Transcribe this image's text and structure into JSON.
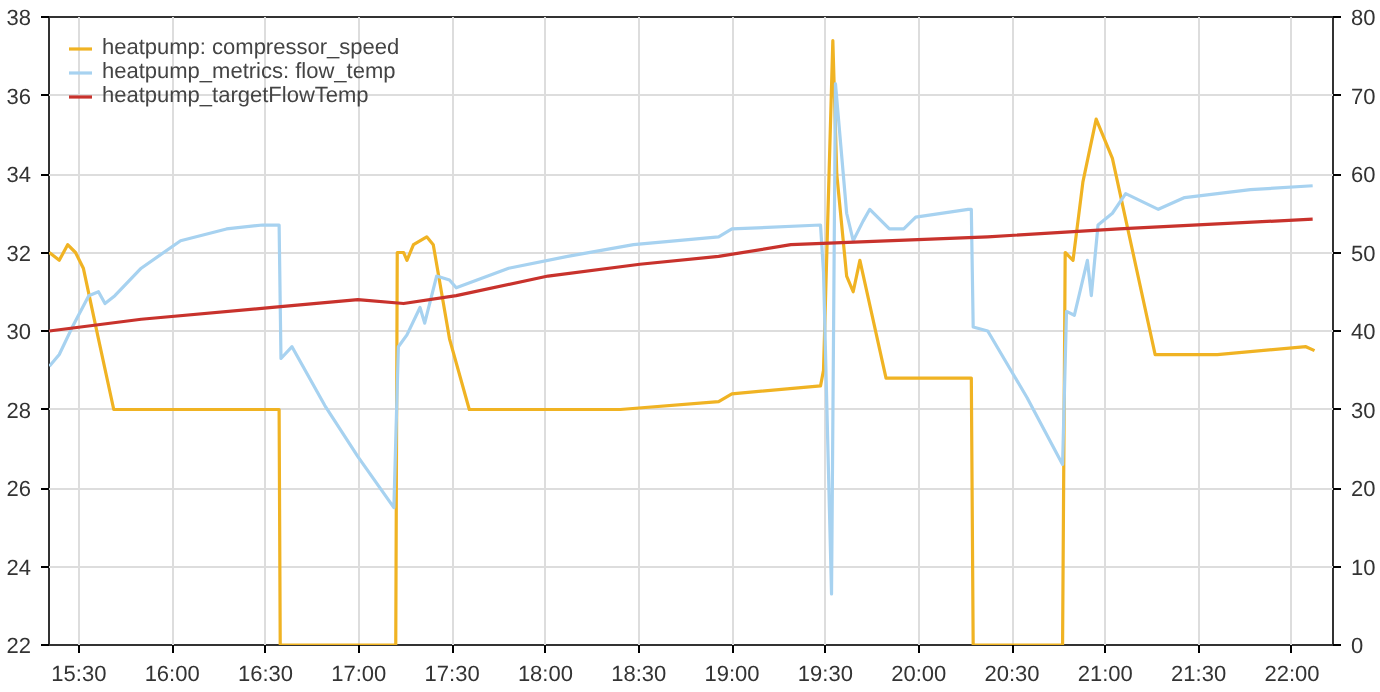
{
  "chart_data": {
    "type": "line",
    "xlim": [
      15.34,
      22.22
    ],
    "xticks": [
      {
        "value": 15.5,
        "label": "15:30"
      },
      {
        "value": 16,
        "label": "16:00"
      },
      {
        "value": 16.5,
        "label": "16:30"
      },
      {
        "value": 17,
        "label": "17:00"
      },
      {
        "value": 17.5,
        "label": "17:30"
      },
      {
        "value": 18,
        "label": "18:00"
      },
      {
        "value": 18.5,
        "label": "18:30"
      },
      {
        "value": 19,
        "label": "19:00"
      },
      {
        "value": 19.5,
        "label": "19:30"
      },
      {
        "value": 20,
        "label": "20:00"
      },
      {
        "value": 20.5,
        "label": "20:30"
      },
      {
        "value": 21,
        "label": "21:00"
      },
      {
        "value": 21.5,
        "label": "21:30"
      },
      {
        "value": 22,
        "label": "22:00"
      }
    ],
    "ylim": [
      22,
      38
    ],
    "yticks": [
      22,
      24,
      26,
      28,
      30,
      32,
      34,
      36,
      38
    ],
    "y2lim": [
      0,
      80
    ],
    "y2ticks": [
      0,
      10,
      20,
      30,
      40,
      50,
      60,
      70,
      80
    ],
    "grid": true,
    "legend": "top left",
    "series": [
      {
        "name": "heatpump: compressor_speed",
        "color": "#f0b323",
        "axis": "y2",
        "x": [
          15.342,
          15.395,
          15.44,
          15.482,
          15.524,
          15.605,
          15.687,
          16.573,
          16.579,
          17.198,
          17.206,
          17.24,
          17.258,
          17.293,
          17.364,
          17.399,
          17.486,
          17.592,
          18.401,
          18.928,
          18.999,
          19.474,
          19.49,
          19.54,
          19.561,
          19.614,
          19.649,
          19.685,
          19.825,
          20.018,
          20.282,
          20.292,
          20.771,
          20.785,
          20.827,
          20.88,
          20.951,
          21.038,
          21.267,
          21.6,
          22.075,
          22.121
        ],
        "values": [
          50,
          49,
          51,
          50,
          48,
          39,
          30,
          30,
          0,
          0,
          50,
          50,
          49,
          51,
          52,
          51,
          39,
          30,
          30,
          31,
          32,
          33,
          35,
          77,
          60,
          47,
          45,
          49,
          34,
          34,
          34,
          0,
          0,
          50,
          49,
          59,
          67,
          62,
          37,
          37,
          38,
          37.5
        ]
      },
      {
        "name": "heatpump_metrics: flow_temp",
        "color": "#a7d2f0",
        "x": [
          15.342,
          15.395,
          15.465,
          15.553,
          15.605,
          15.64,
          15.693,
          15.834,
          16.045,
          16.291,
          16.484,
          16.573,
          16.583,
          16.642,
          16.818,
          16.995,
          17.188,
          17.212,
          17.258,
          17.328,
          17.353,
          17.417,
          17.486,
          17.522,
          17.803,
          18.119,
          18.472,
          18.928,
          18.999,
          19.474,
          19.49,
          19.533,
          19.554,
          19.614,
          19.649,
          19.702,
          19.738,
          19.843,
          19.92,
          19.984,
          20.265,
          20.282,
          20.292,
          20.37,
          20.581,
          20.771,
          20.792,
          20.834,
          20.904,
          20.925,
          20.961,
          21.038,
          21.109,
          21.284,
          21.425,
          21.777,
          22.111
        ],
        "values": [
          29.1,
          29.4,
          30.1,
          30.9,
          31.0,
          30.7,
          30.9,
          31.6,
          32.3,
          32.6,
          32.7,
          32.7,
          29.3,
          29.6,
          28.1,
          26.8,
          25.5,
          29.6,
          29.9,
          30.6,
          30.2,
          31.4,
          31.3,
          31.1,
          31.6,
          31.9,
          32.2,
          32.4,
          32.6,
          32.7,
          31.5,
          23.3,
          36.3,
          33.0,
          32.3,
          32.8,
          33.1,
          32.6,
          32.6,
          32.9,
          33.1,
          33.1,
          30.1,
          30.0,
          28.3,
          26.6,
          30.5,
          30.4,
          31.8,
          30.9,
          32.7,
          33.0,
          33.5,
          33.1,
          33.4,
          33.6,
          33.7
        ]
      },
      {
        "name": "heatpump_targetFlowTemp",
        "color": "#c8322c",
        "x": [
          15.342,
          15.834,
          16.537,
          16.995,
          17.24,
          17.522,
          18.014,
          18.506,
          18.928,
          19.315,
          20.37,
          21.073,
          22.111
        ],
        "values": [
          30.0,
          30.3,
          30.6,
          30.8,
          30.7,
          30.9,
          31.4,
          31.7,
          31.9,
          32.2,
          32.4,
          32.6,
          32.85
        ]
      }
    ]
  }
}
